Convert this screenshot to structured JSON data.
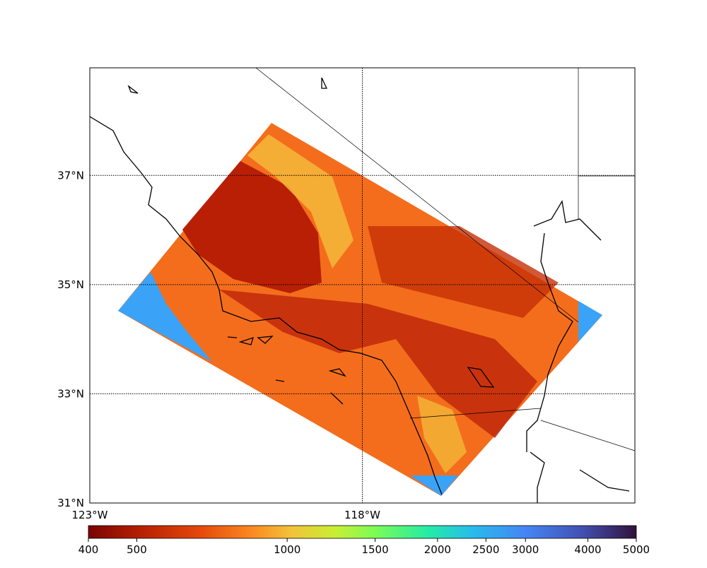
{
  "map": {
    "xlim": [
      -123,
      -113
    ],
    "ylim": [
      31,
      38.97
    ],
    "xticks": [
      {
        "value": -123,
        "label": "123°W"
      },
      {
        "value": -118,
        "label": "118°W"
      }
    ],
    "yticks": [
      {
        "value": 31,
        "label": "31°N"
      },
      {
        "value": 33,
        "label": "33°N"
      },
      {
        "value": 35,
        "label": "35°N"
      },
      {
        "value": 37,
        "label": "37°N"
      }
    ],
    "grid": true
  },
  "colorbar": {
    "lim": [
      400,
      5000
    ],
    "log": true,
    "ticks": [
      400,
      500,
      1000,
      1500,
      2000,
      2500,
      3000,
      4000,
      5000
    ]
  }
}
